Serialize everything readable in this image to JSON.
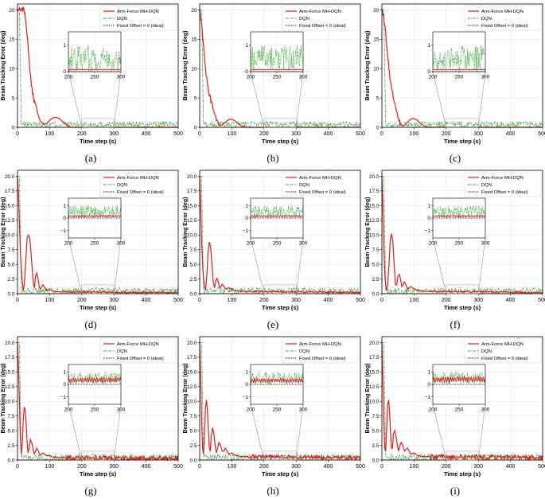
{
  "chart_data": [
    {
      "type": "line",
      "caption": "(a)",
      "ymax_tick": 20,
      "yticks": [
        0,
        5,
        10,
        15,
        20
      ],
      "ylim": [
        0,
        21
      ],
      "red": [
        [
          0,
          20.1
        ],
        [
          10,
          19.8
        ],
        [
          20,
          20.2
        ],
        [
          25,
          18.5
        ],
        [
          30,
          16
        ],
        [
          35,
          12
        ],
        [
          40,
          9
        ],
        [
          45,
          6.5
        ],
        [
          50,
          5
        ],
        [
          55,
          4
        ],
        [
          60,
          3
        ],
        [
          65,
          2
        ],
        [
          70,
          1.2
        ],
        [
          80,
          0.5
        ],
        [
          90,
          0.6
        ],
        [
          100,
          1.2
        ],
        [
          110,
          1.6
        ],
        [
          120,
          1.7
        ],
        [
          130,
          1.5
        ],
        [
          140,
          1.0
        ],
        [
          150,
          0.5
        ],
        [
          160,
          0.1
        ],
        [
          170,
          0
        ],
        [
          500,
          0
        ]
      ],
      "inset_ylim": [
        0,
        1.5
      ],
      "inset_yticks": [
        0,
        1
      ],
      "inset_red_amp": 0.03,
      "xlabel": "Time step (s)",
      "ylabel": "Beam Tracking Error (deg)",
      "xticks": [
        0,
        100,
        200,
        300,
        400,
        500
      ],
      "xlim": [
        0,
        500
      ],
      "inset_xticks": [
        200,
        250,
        300
      ]
    },
    {
      "type": "line",
      "caption": "(b)",
      "ymax_tick": 20,
      "yticks": [
        0,
        5,
        10,
        15,
        20
      ],
      "ylim": [
        0,
        21
      ],
      "red": [
        [
          0,
          20.2
        ],
        [
          5,
          18
        ],
        [
          10,
          15
        ],
        [
          15,
          12
        ],
        [
          20,
          9
        ],
        [
          25,
          7
        ],
        [
          30,
          5.5
        ],
        [
          35,
          4.5
        ],
        [
          40,
          3.5
        ],
        [
          45,
          2.5
        ],
        [
          50,
          1.6
        ],
        [
          55,
          0.8
        ],
        [
          60,
          0.3
        ],
        [
          70,
          0.4
        ],
        [
          80,
          0.9
        ],
        [
          90,
          1.3
        ],
        [
          100,
          1.4
        ],
        [
          110,
          1.1
        ],
        [
          120,
          0.6
        ],
        [
          130,
          0.2
        ],
        [
          140,
          0
        ],
        [
          500,
          0
        ]
      ],
      "inset_ylim": [
        0,
        1.5
      ],
      "inset_yticks": [
        0,
        1
      ],
      "inset_red_amp": 0.03,
      "xlabel": "Time step (s)",
      "ylabel": "Beam Tracking Error (deg)",
      "xticks": [
        0,
        100,
        200,
        300,
        400,
        500
      ],
      "xlim": [
        0,
        500
      ],
      "inset_xticks": [
        200,
        250,
        300
      ]
    },
    {
      "type": "line",
      "caption": "(c)",
      "ymax_tick": 20,
      "yticks": [
        0,
        5,
        10,
        15,
        20
      ],
      "ylim": [
        0,
        21
      ],
      "red": [
        [
          0,
          20.2
        ],
        [
          5,
          19
        ],
        [
          10,
          17
        ],
        [
          15,
          14
        ],
        [
          20,
          11
        ],
        [
          25,
          8.5
        ],
        [
          30,
          7
        ],
        [
          35,
          5.5
        ],
        [
          40,
          4
        ],
        [
          45,
          2.8
        ],
        [
          50,
          1.8
        ],
        [
          55,
          1.0
        ],
        [
          60,
          0.4
        ],
        [
          70,
          0.3
        ],
        [
          80,
          0.9
        ],
        [
          90,
          1.4
        ],
        [
          100,
          1.5
        ],
        [
          110,
          1.2
        ],
        [
          120,
          0.7
        ],
        [
          130,
          0.3
        ],
        [
          140,
          0
        ],
        [
          500,
          0
        ]
      ],
      "inset_ylim": [
        0,
        1.5
      ],
      "inset_yticks": [
        0,
        1
      ],
      "inset_red_amp": 0.03,
      "xlabel": "Time step (s)",
      "ylabel": "Beam Tracking Error (deg)",
      "xticks": [
        0,
        100,
        200,
        300,
        400,
        500
      ],
      "xlim": [
        0,
        500
      ],
      "inset_xticks": [
        200,
        250,
        300
      ]
    },
    {
      "type": "line",
      "caption": "(d)",
      "ymax_tick": 20,
      "yticks": [
        0,
        2.5,
        5,
        7.5,
        10,
        12.5,
        15,
        17.5,
        20
      ],
      "ylim": [
        0,
        21
      ],
      "red": [
        [
          0,
          20
        ],
        [
          3,
          17
        ],
        [
          6,
          12
        ],
        [
          10,
          6
        ],
        [
          14,
          2.5
        ],
        [
          18,
          0.5
        ],
        [
          22,
          2
        ],
        [
          26,
          6
        ],
        [
          30,
          9.5
        ],
        [
          34,
          10
        ],
        [
          38,
          9.5
        ],
        [
          42,
          7
        ],
        [
          46,
          4
        ],
        [
          50,
          1.5
        ],
        [
          53,
          1
        ],
        [
          56,
          3
        ],
        [
          60,
          3.5
        ],
        [
          64,
          2.5
        ],
        [
          68,
          1
        ],
        [
          72,
          0.8
        ],
        [
          76,
          1.3
        ],
        [
          80,
          1.5
        ],
        [
          85,
          1
        ],
        [
          90,
          0.5
        ],
        [
          95,
          0.7
        ],
        [
          100,
          0.8
        ],
        [
          110,
          0.4
        ],
        [
          130,
          0.3
        ],
        [
          500,
          0.2
        ]
      ],
      "inset_ylim": [
        -1.6,
        1.6
      ],
      "inset_yticks": [
        -1,
        0,
        1
      ],
      "inset_red_amp": 0.12,
      "xlabel": "Time step (s)",
      "ylabel": "Beam Tracking Error (deg)",
      "xticks": [
        0,
        100,
        200,
        300,
        400,
        500
      ],
      "xlim": [
        0,
        500
      ],
      "inset_xticks": [
        200,
        250,
        300
      ]
    },
    {
      "type": "line",
      "caption": "(e)",
      "ymax_tick": 20,
      "yticks": [
        0,
        2.5,
        5,
        7.5,
        10,
        12.5,
        15,
        17.5,
        20
      ],
      "ylim": [
        0,
        21
      ],
      "red": [
        [
          0,
          20
        ],
        [
          3,
          15
        ],
        [
          6,
          9
        ],
        [
          10,
          4
        ],
        [
          14,
          1.5
        ],
        [
          18,
          0.5
        ],
        [
          22,
          3
        ],
        [
          26,
          7
        ],
        [
          30,
          8.8
        ],
        [
          34,
          8
        ],
        [
          38,
          5
        ],
        [
          42,
          2
        ],
        [
          46,
          1
        ],
        [
          50,
          2.2
        ],
        [
          54,
          2.6
        ],
        [
          58,
          2
        ],
        [
          62,
          1
        ],
        [
          66,
          1.2
        ],
        [
          70,
          1.6
        ],
        [
          75,
          1.3
        ],
        [
          80,
          0.8
        ],
        [
          90,
          1
        ],
        [
          100,
          0.8
        ],
        [
          110,
          0.5
        ],
        [
          130,
          0.4
        ],
        [
          500,
          0.2
        ]
      ],
      "inset_ylim": [
        -1.6,
        1.6
      ],
      "inset_yticks": [
        -1,
        0,
        1
      ],
      "inset_red_amp": 0.12,
      "xlabel": "Time step (s)",
      "ylabel": "Beam Tracking Error (deg)",
      "xticks": [
        0,
        100,
        200,
        300,
        400,
        500
      ],
      "xlim": [
        0,
        500
      ],
      "inset_xticks": [
        200,
        250,
        300
      ]
    },
    {
      "type": "line",
      "caption": "(f)",
      "ymax_tick": 20,
      "yticks": [
        0,
        2.5,
        5,
        7.5,
        10,
        12.5,
        15,
        17.5,
        20
      ],
      "ylim": [
        0,
        21
      ],
      "red": [
        [
          0,
          20
        ],
        [
          3,
          15
        ],
        [
          6,
          8
        ],
        [
          10,
          2.5
        ],
        [
          14,
          0.5
        ],
        [
          18,
          1.5
        ],
        [
          22,
          5
        ],
        [
          26,
          9
        ],
        [
          30,
          10.2
        ],
        [
          34,
          9
        ],
        [
          38,
          5
        ],
        [
          42,
          1.5
        ],
        [
          46,
          1.5
        ],
        [
          50,
          3
        ],
        [
          54,
          3.3
        ],
        [
          58,
          2.5
        ],
        [
          62,
          1.2
        ],
        [
          66,
          1.5
        ],
        [
          70,
          2
        ],
        [
          75,
          1.5
        ],
        [
          80,
          0.8
        ],
        [
          90,
          1.2
        ],
        [
          100,
          0.8
        ],
        [
          110,
          0.6
        ],
        [
          130,
          0.4
        ],
        [
          500,
          0.2
        ]
      ],
      "inset_ylim": [
        -1.6,
        1.6
      ],
      "inset_yticks": [
        -1,
        0,
        1
      ],
      "inset_red_amp": 0.12,
      "xlabel": "Time step (s)",
      "ylabel": "Beam Tracking Error (deg)",
      "xticks": [
        0,
        100,
        200,
        300,
        400,
        500
      ],
      "xlim": [
        0,
        500
      ],
      "inset_xticks": [
        200,
        250,
        300
      ]
    },
    {
      "type": "line",
      "caption": "(g)",
      "ymax_tick": 20,
      "yticks": [
        0,
        2.5,
        5,
        7.5,
        10,
        12.5,
        15,
        17.5,
        20
      ],
      "ylim": [
        0,
        21
      ],
      "red": [
        [
          0,
          20
        ],
        [
          3,
          16
        ],
        [
          6,
          10
        ],
        [
          9,
          4
        ],
        [
          12,
          1
        ],
        [
          15,
          3
        ],
        [
          18,
          7
        ],
        [
          21,
          9
        ],
        [
          24,
          8.5
        ],
        [
          27,
          6
        ],
        [
          30,
          3
        ],
        [
          33,
          1.2
        ],
        [
          36,
          2
        ],
        [
          40,
          3.5
        ],
        [
          44,
          3
        ],
        [
          48,
          2
        ],
        [
          52,
          1
        ],
        [
          56,
          1.5
        ],
        [
          60,
          2
        ],
        [
          65,
          1.5
        ],
        [
          70,
          0.8
        ],
        [
          75,
          1
        ],
        [
          80,
          1.2
        ],
        [
          90,
          0.7
        ],
        [
          100,
          0.8
        ],
        [
          110,
          0.5
        ],
        [
          130,
          0.4
        ],
        [
          500,
          0.3
        ]
      ],
      "inset_ylim": [
        -1.6,
        1.6
      ],
      "inset_yticks": [
        -1,
        0,
        1
      ],
      "inset_red_amp": 0.35,
      "xlabel": "Time step (s)",
      "ylabel": "Beam Tracking Error (deg)",
      "xticks": [
        0,
        100,
        200,
        300,
        400,
        500
      ],
      "xlim": [
        0,
        500
      ],
      "inset_xticks": [
        200,
        250,
        300
      ]
    },
    {
      "type": "line",
      "caption": "(h)",
      "ymax_tick": 20,
      "yticks": [
        0,
        2.5,
        5,
        7.5,
        10,
        12.5,
        15,
        17.5,
        20
      ],
      "ylim": [
        0,
        21
      ],
      "red": [
        [
          0,
          20
        ],
        [
          3,
          14
        ],
        [
          6,
          7
        ],
        [
          9,
          2
        ],
        [
          12,
          1
        ],
        [
          15,
          5
        ],
        [
          18,
          9
        ],
        [
          21,
          10.2
        ],
        [
          24,
          8.5
        ],
        [
          27,
          5
        ],
        [
          30,
          2
        ],
        [
          33,
          1.5
        ],
        [
          36,
          4
        ],
        [
          40,
          5.5
        ],
        [
          44,
          4.5
        ],
        [
          48,
          2.5
        ],
        [
          52,
          1.2
        ],
        [
          56,
          2
        ],
        [
          60,
          3
        ],
        [
          65,
          2.5
        ],
        [
          70,
          1.5
        ],
        [
          75,
          1.5
        ],
        [
          80,
          2
        ],
        [
          85,
          1.5
        ],
        [
          90,
          1
        ],
        [
          100,
          1.2
        ],
        [
          110,
          0.8
        ],
        [
          130,
          0.6
        ],
        [
          500,
          0.4
        ]
      ],
      "inset_ylim": [
        -1.6,
        1.6
      ],
      "inset_yticks": [
        -1,
        0,
        1
      ],
      "inset_red_amp": 0.3,
      "xlabel": "Time step (s)",
      "ylabel": "Beam Tracking Error (deg)",
      "xticks": [
        0,
        100,
        200,
        300,
        400,
        500
      ],
      "xlim": [
        0,
        500
      ],
      "inset_xticks": [
        200,
        250,
        300
      ]
    },
    {
      "type": "line",
      "caption": "(i)",
      "ymax_tick": 20,
      "yticks": [
        0,
        2.5,
        5,
        7.5,
        10,
        12.5,
        15,
        17.5,
        20
      ],
      "ylim": [
        0,
        21
      ],
      "red": [
        [
          0,
          20
        ],
        [
          3,
          14
        ],
        [
          6,
          7
        ],
        [
          9,
          2
        ],
        [
          12,
          1.5
        ],
        [
          15,
          6
        ],
        [
          18,
          9.5
        ],
        [
          21,
          10.2
        ],
        [
          24,
          8
        ],
        [
          27,
          4.5
        ],
        [
          30,
          2
        ],
        [
          33,
          2
        ],
        [
          36,
          4.5
        ],
        [
          40,
          5
        ],
        [
          44,
          4
        ],
        [
          48,
          2.5
        ],
        [
          52,
          1.5
        ],
        [
          56,
          2.5
        ],
        [
          60,
          3
        ],
        [
          65,
          2.5
        ],
        [
          70,
          1.5
        ],
        [
          75,
          1.8
        ],
        [
          80,
          2
        ],
        [
          85,
          1.5
        ],
        [
          90,
          1
        ],
        [
          100,
          1.2
        ],
        [
          110,
          0.8
        ],
        [
          130,
          0.6
        ],
        [
          500,
          0.4
        ]
      ],
      "inset_ylim": [
        -1.6,
        1.6
      ],
      "inset_yticks": [
        -1,
        0,
        1
      ],
      "inset_red_amp": 0.4,
      "xlabel": "Time step (s)",
      "ylabel": "Beam Tracking Error (deg)",
      "xticks": [
        0,
        100,
        200,
        300,
        400,
        500
      ],
      "xlim": [
        0,
        500
      ],
      "inset_xticks": [
        200,
        250,
        300
      ]
    }
  ],
  "legend": {
    "series": [
      {
        "name": "Arm-Force MH-DQN",
        "color": "#e41a1c",
        "style": "solid"
      },
      {
        "name": "DQN",
        "color": "#2ca02c",
        "style": "dashdot"
      },
      {
        "name": "Fixed Offset = 0 (ideal)",
        "color": "#000000",
        "style": "dotted"
      }
    ],
    "placement": "top-right"
  },
  "dqn_noise": {
    "baseline": 0.5,
    "amplitude": 0.5,
    "initial_value": 20,
    "drop_at": 12
  },
  "inset_xlim": [
    200,
    300
  ],
  "grid": true
}
